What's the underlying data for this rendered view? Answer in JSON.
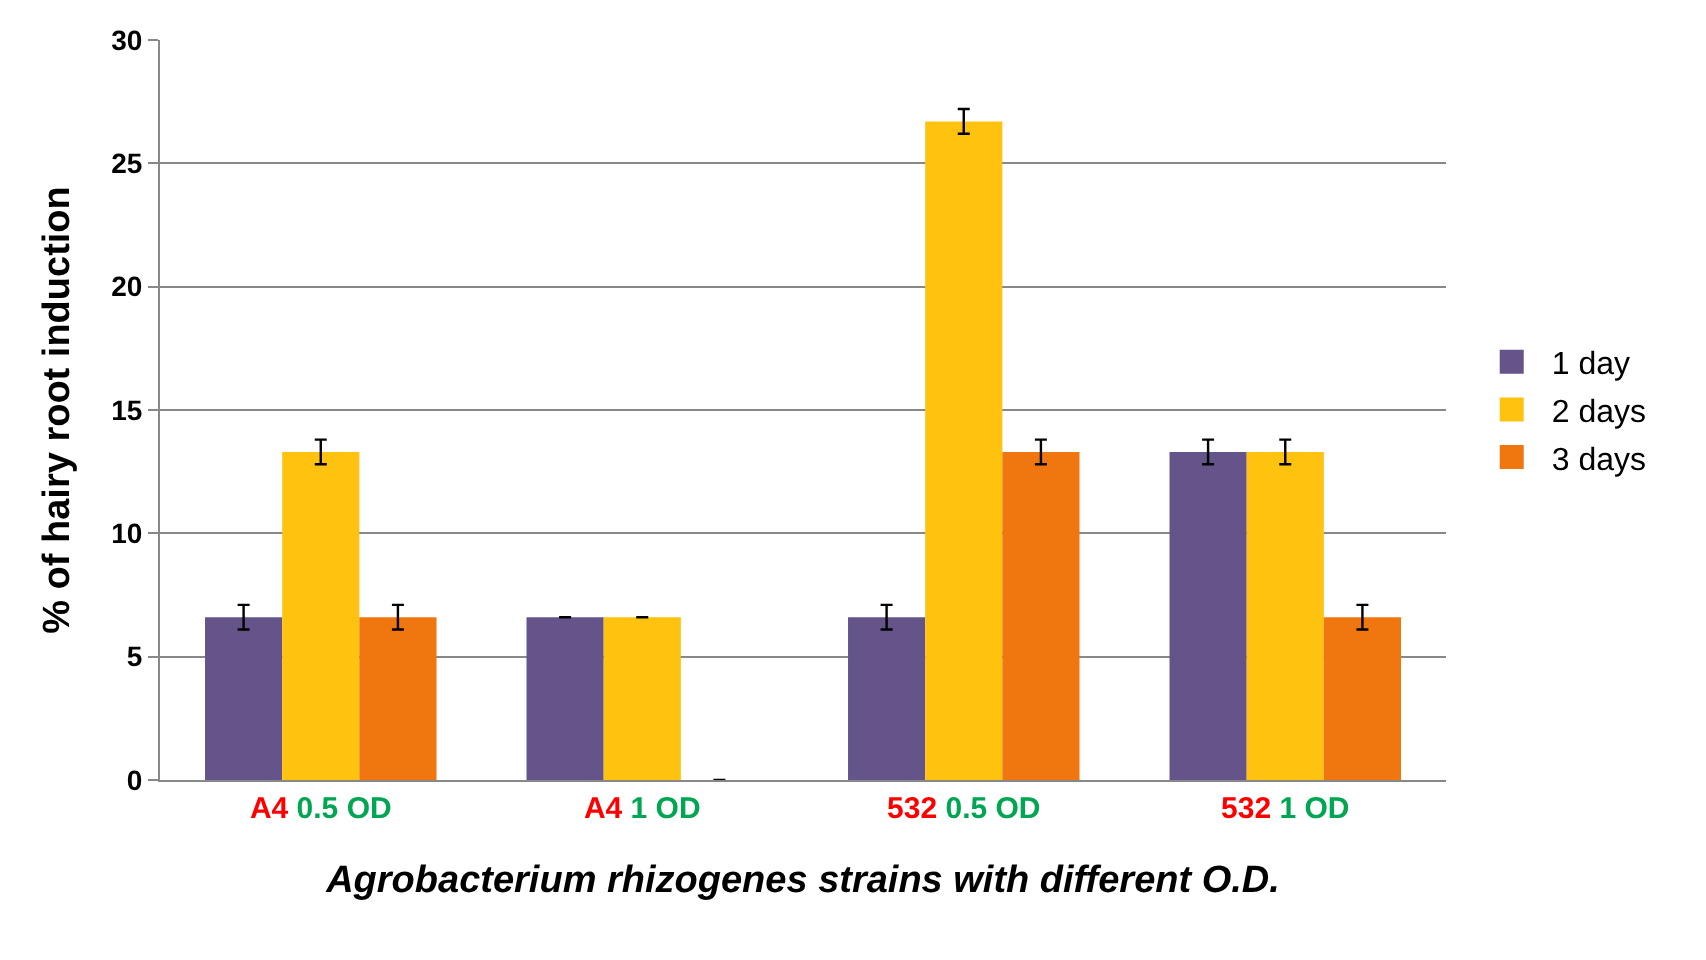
{
  "chart_data": {
    "type": "bar",
    "xlabel": "Agrobacterium rhizogenes strains with different O.D.",
    "ylabel": "% of hairy root induction",
    "categories": [
      "A4 0.5 OD",
      "A4 1 OD",
      "532 0.5 OD",
      "532 1 OD"
    ],
    "series": [
      {
        "name": "1 day",
        "color": "#65548a",
        "values": [
          6.6,
          6.6,
          6.6,
          13.3
        ],
        "errors": [
          0.5,
          0,
          0.5,
          0.5
        ]
      },
      {
        "name": "2 days",
        "color": "#ffc20e",
        "values": [
          13.3,
          6.6,
          26.7,
          13.3
        ],
        "errors": [
          0.5,
          0,
          0.5,
          0.5
        ]
      },
      {
        "name": "3 days",
        "color": "#f0760f",
        "values": [
          6.6,
          0,
          13.3,
          6.6
        ],
        "errors": [
          0.5,
          0,
          0.5,
          0.5
        ]
      }
    ],
    "ylim": [
      0,
      30
    ],
    "yticks": [
      0,
      5,
      10,
      15,
      20,
      25,
      30
    ],
    "grid": "y",
    "legend": "right"
  }
}
